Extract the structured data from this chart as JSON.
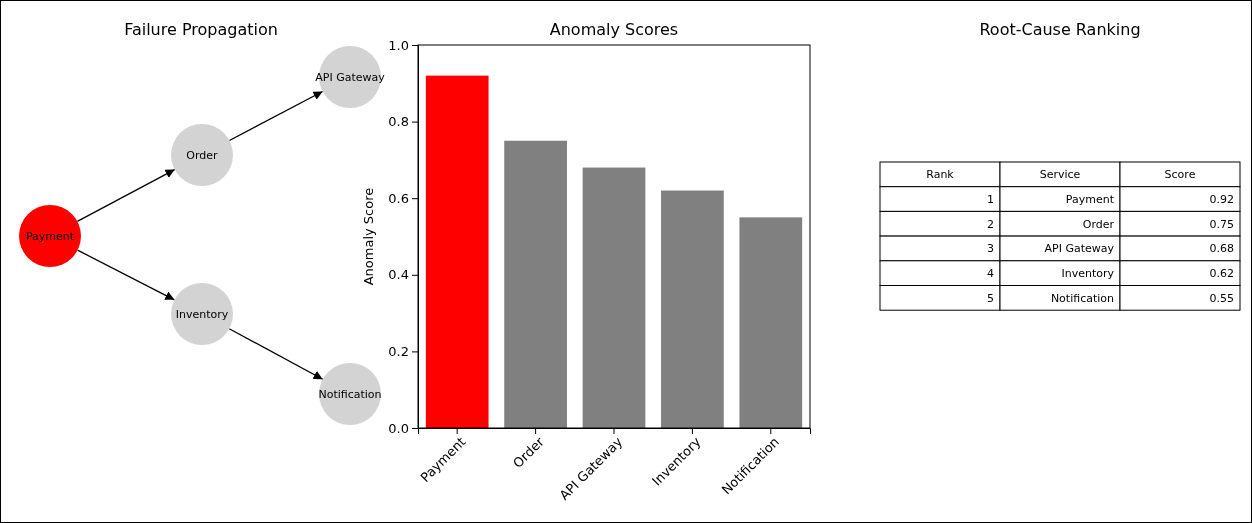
{
  "chart_data": [
    {
      "type": "other",
      "title": "Failure Propagation",
      "annotations": [
        "Payment",
        "Order",
        "Inventory",
        "API Gateway",
        "Notification"
      ],
      "colors": [
        "#ff0000",
        "#d3d3d3",
        "#d3d3d3",
        "#d3d3d3",
        "#d3d3d3"
      ]
    },
    {
      "type": "bar",
      "title": "Anomaly Scores",
      "ylabel": "Anomaly Score",
      "categories": [
        "Payment",
        "Order",
        "API Gateway",
        "Inventory",
        "Notification"
      ],
      "values": [
        0.92,
        0.75,
        0.68,
        0.62,
        0.55
      ],
      "colors": [
        "#ff0000",
        "#808080",
        "#808080",
        "#808080",
        "#808080"
      ],
      "ylim": [
        0,
        1
      ],
      "yticks": [
        {
          "value": 0,
          "label": "0.0"
        },
        {
          "value": 0.2,
          "label": "0.2"
        },
        {
          "value": 0.4,
          "label": "0.4"
        },
        {
          "value": 0.6,
          "label": "0.6"
        },
        {
          "value": 0.8,
          "label": "0.8"
        },
        {
          "value": 1,
          "label": "1.0"
        }
      ]
    },
    {
      "type": "heatmap",
      "title": "Root-Cause Ranking",
      "ylabel": "Rank",
      "categories": [
        "Service",
        "Score"
      ],
      "y_categories": [
        "1",
        "2",
        "3",
        "4",
        "5"
      ],
      "cells": [
        [
          null,
          null
        ],
        [
          null,
          null
        ],
        [
          null,
          null
        ],
        [
          null,
          null
        ],
        [
          null,
          null
        ]
      ],
      "cell_labels": [
        [
          "Payment",
          "0.92"
        ],
        [
          "Order",
          "0.75"
        ],
        [
          "API Gateway",
          "0.68"
        ],
        [
          "Inventory",
          "0.62"
        ],
        [
          "Notification",
          "0.55"
        ]
      ]
    }
  ]
}
